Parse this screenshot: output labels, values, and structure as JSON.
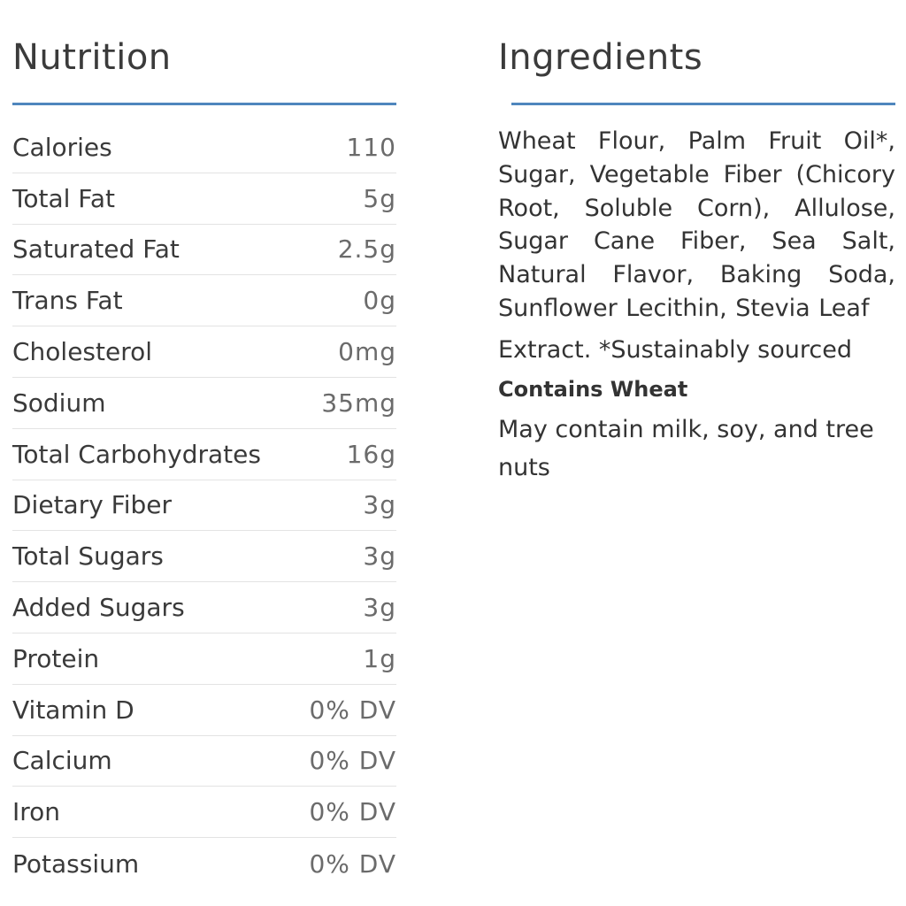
{
  "nutrition": {
    "title": "Nutrition",
    "rows": [
      {
        "name": "Calories",
        "value": "110"
      },
      {
        "name": "Total Fat",
        "value": "5g"
      },
      {
        "name": "Saturated Fat",
        "value": "2.5g"
      },
      {
        "name": "Trans Fat",
        "value": "0g"
      },
      {
        "name": "Cholesterol",
        "value": "0mg"
      },
      {
        "name": "Sodium",
        "value": "35mg"
      },
      {
        "name": "Total Carbohydrates",
        "value": "16g"
      },
      {
        "name": "Dietary Fiber",
        "value": "3g"
      },
      {
        "name": "Total Sugars",
        "value": "3g"
      },
      {
        "name": "Added Sugars",
        "value": "3g"
      },
      {
        "name": "Protein",
        "value": "1g"
      },
      {
        "name": "Vitamin D",
        "value": "0% DV"
      },
      {
        "name": "Calcium",
        "value": "0% DV"
      },
      {
        "name": "Iron",
        "value": "0% DV"
      },
      {
        "name": "Potassium",
        "value": "0% DV"
      }
    ]
  },
  "ingredients": {
    "title": "Ingredients",
    "text": "Wheat Flour, Palm Fruit Oil*, Sugar, Vegetable Fiber (Chicory Root, Soluble Corn), Allulose, Sugar Cane Fiber, Sea Salt, Natural Flavor, Baking Soda, Sunflower Lecithin, Stevia Leaf",
    "text_end": "Extract. *Sustainably sourced",
    "contains": "Contains Wheat",
    "may_contain": "May contain milk, soy, and tree nuts"
  },
  "colors": {
    "rule": "#4f86bd",
    "text": "#3a3a3a",
    "value_text": "#6b6b6b",
    "divider": "#e3e3e3"
  }
}
